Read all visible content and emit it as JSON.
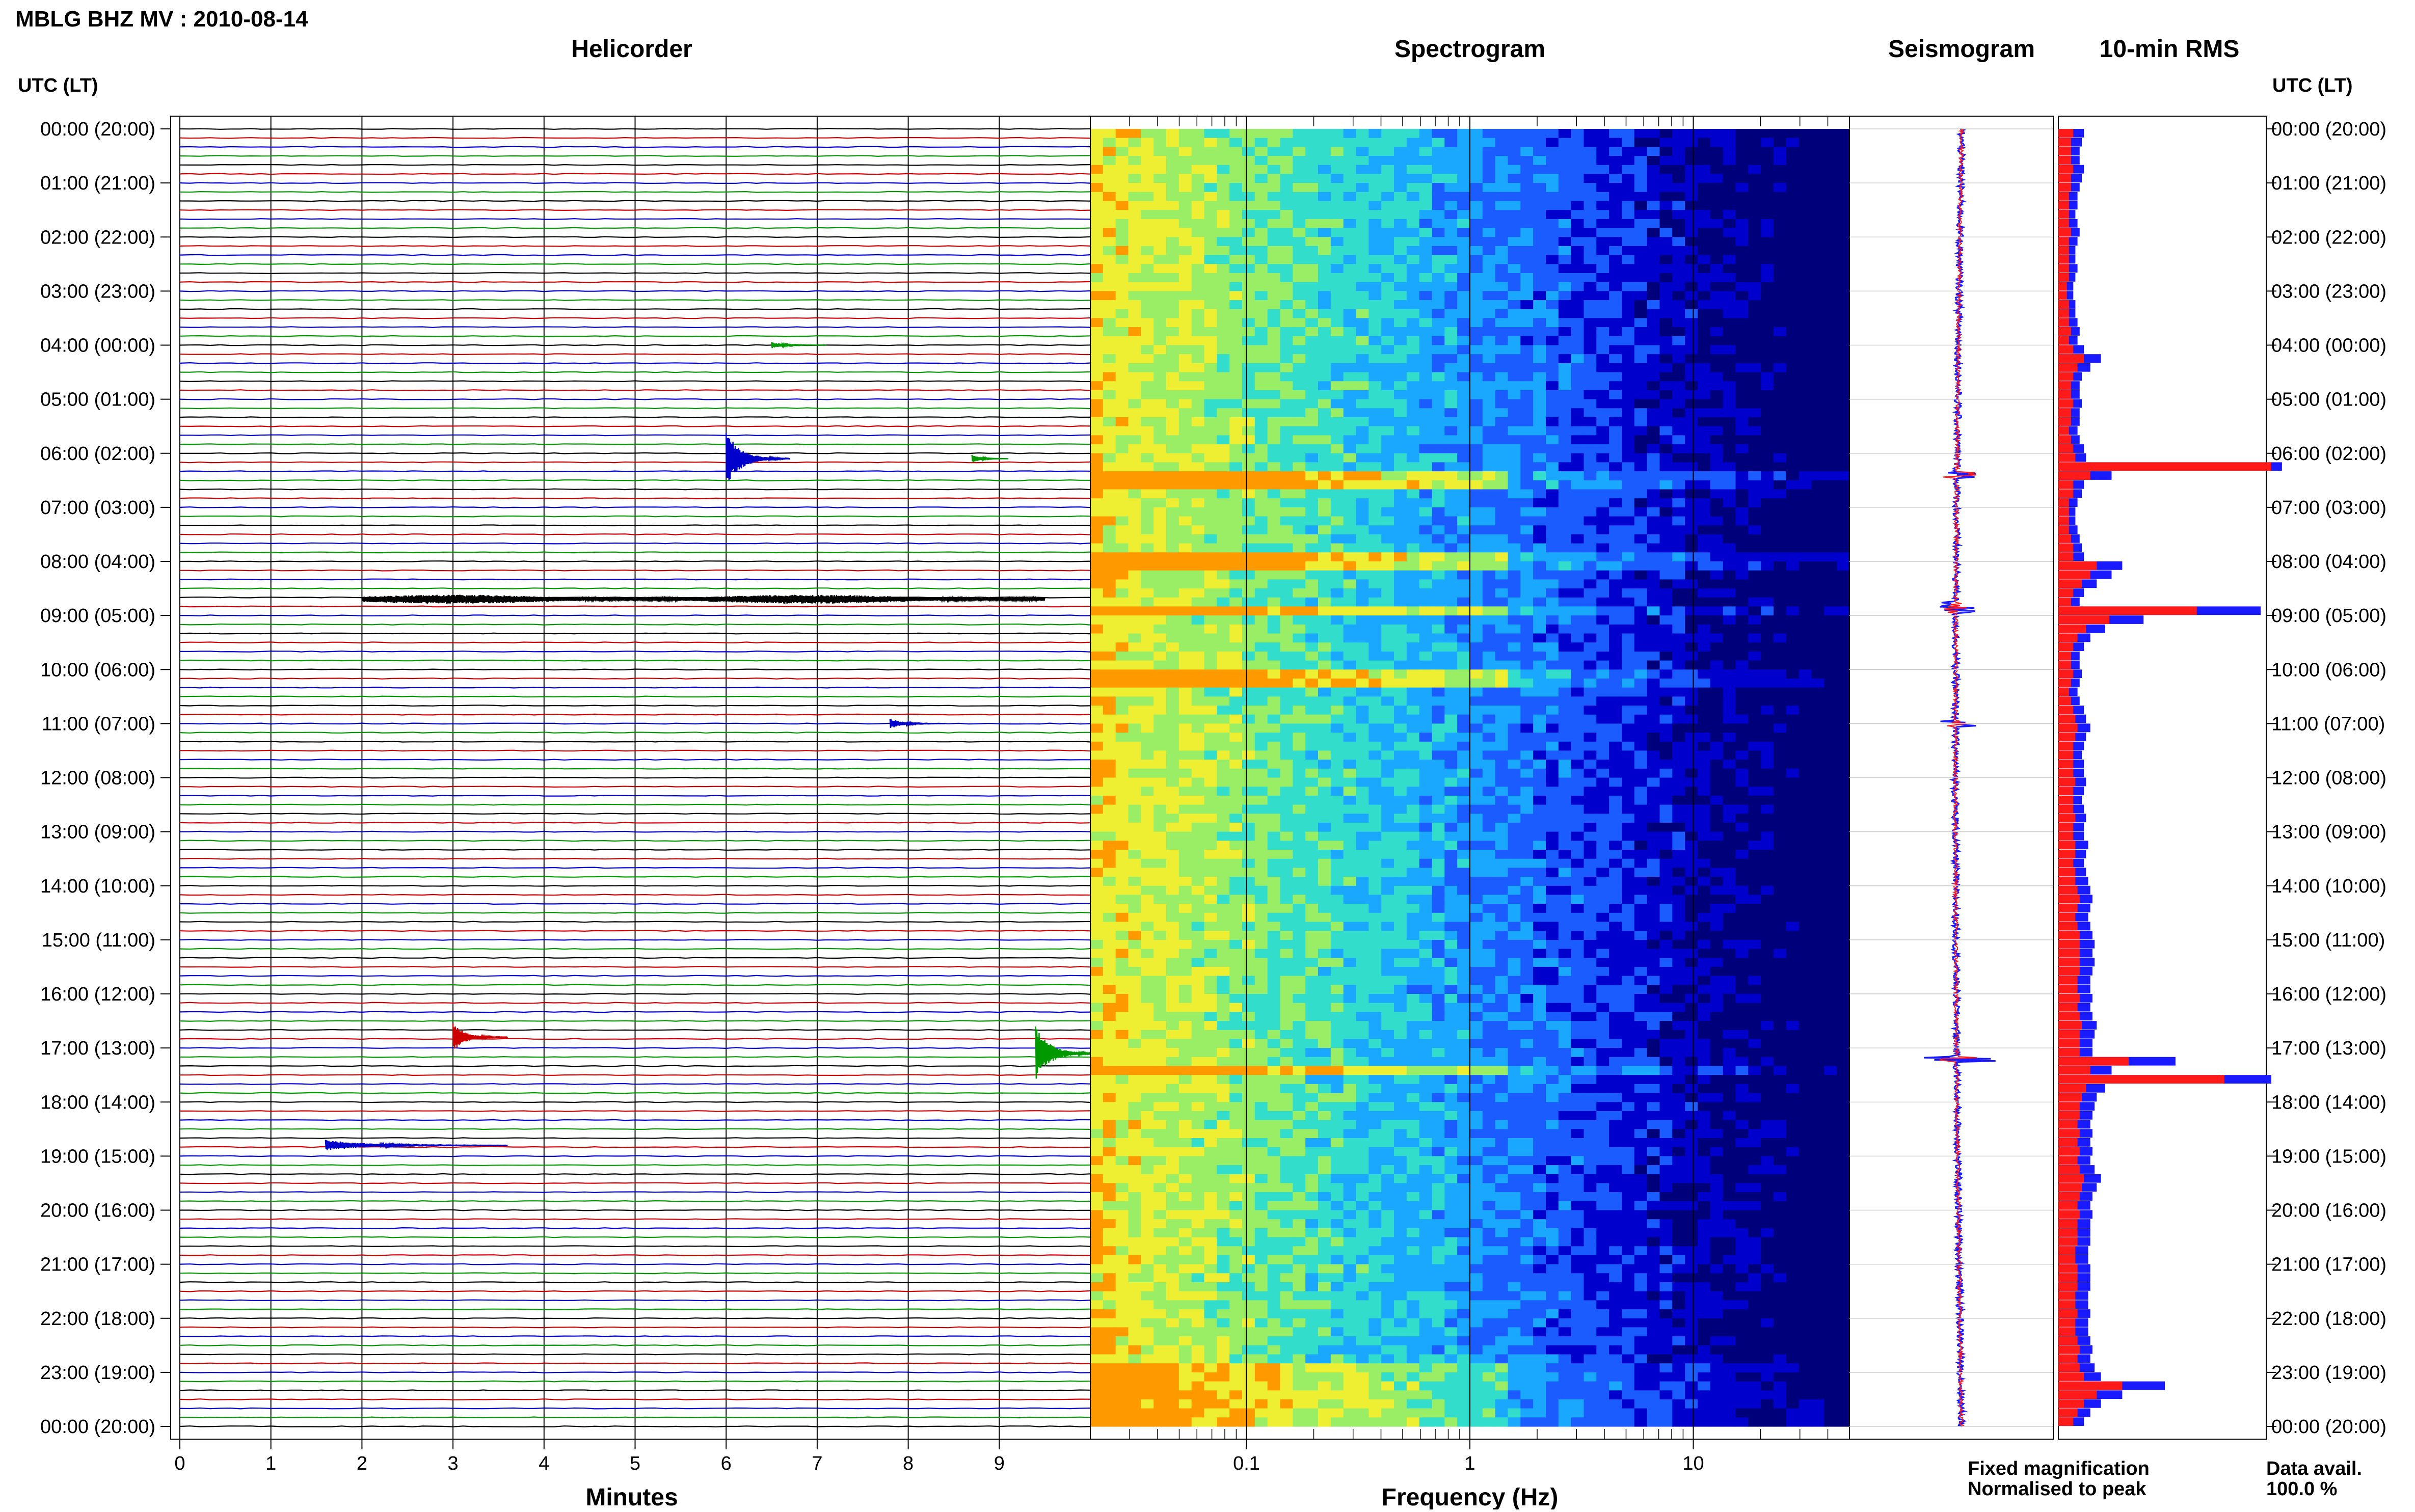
{
  "title": "MBLG BHZ MV : 2010-08-14",
  "axis_left_label": "UTC (LT)",
  "axis_right_label": "UTC (LT)",
  "panels": {
    "helicorder": "Helicorder",
    "spectrogram": "Spectrogram",
    "seismogram": "Seismogram",
    "rms": "10-min RMS"
  },
  "time_labels": [
    "00:00 (20:00)",
    "01:00 (21:00)",
    "02:00 (22:00)",
    "03:00 (23:00)",
    "04:00 (00:00)",
    "05:00 (01:00)",
    "06:00 (02:00)",
    "07:00 (03:00)",
    "08:00 (04:00)",
    "09:00 (05:00)",
    "10:00 (06:00)",
    "11:00 (07:00)",
    "12:00 (08:00)",
    "13:00 (09:00)",
    "14:00 (10:00)",
    "15:00 (11:00)",
    "16:00 (12:00)",
    "17:00 (13:00)",
    "18:00 (14:00)",
    "19:00 (15:00)",
    "20:00 (16:00)",
    "21:00 (17:00)",
    "22:00 (18:00)",
    "23:00 (19:00)",
    "00:00 (20:00)"
  ],
  "legend": {
    "fixed": "Fixed magnification",
    "normalised": "Normalised to peak",
    "fixed_color": "#1a1aff",
    "normalised_color": "#ff1a1a"
  },
  "data_avail": {
    "label": "Data avail.",
    "value": "100.0 %"
  },
  "chart_data": [
    {
      "type": "line",
      "name": "helicorder",
      "title": "Helicorder",
      "xlabel": "Minutes",
      "xlim": [
        0,
        10
      ],
      "xticks": [
        "0",
        "1",
        "2",
        "3",
        "4",
        "5",
        "6",
        "7",
        "8",
        "9"
      ],
      "line_minutes": 10,
      "line_count": 144,
      "trace_colors": [
        "#000000",
        "#cc0000",
        "#0000cc",
        "#009900"
      ],
      "events": [
        {
          "start_hour": 4.0,
          "minute": 6.5,
          "amp": 0.35,
          "dur": 0.6,
          "color": "#009900"
        },
        {
          "start_hour": 6.1,
          "minute": 6.0,
          "amp": 3.2,
          "dur": 0.7,
          "color": "#0000cc"
        },
        {
          "start_hour": 6.1,
          "minute": 8.7,
          "amp": 0.5,
          "dur": 0.4,
          "color": "#009900"
        },
        {
          "start_hour": 8.7,
          "minute": 2.0,
          "amp": 0.5,
          "dur": 7.5,
          "color": "#000000"
        },
        {
          "start_hour": 11.0,
          "minute": 7.8,
          "amp": 0.6,
          "dur": 0.6,
          "color": "#0000cc"
        },
        {
          "start_hour": 16.8,
          "minute": 3.0,
          "amp": 1.6,
          "dur": 0.6,
          "color": "#cc0000"
        },
        {
          "start_hour": 17.1,
          "minute": 9.4,
          "amp": 3.0,
          "dur": 0.7,
          "color": "#009900"
        },
        {
          "start_hour": 18.8,
          "minute": 1.6,
          "amp": 0.6,
          "dur": 2.0,
          "color": "#0000cc"
        }
      ]
    },
    {
      "type": "heatmap",
      "name": "spectrogram",
      "title": "Spectrogram",
      "xlabel": "Frequency (Hz)",
      "xscale": "log",
      "xlim": [
        0.02,
        50
      ],
      "xticks": [
        0.1,
        1,
        10
      ],
      "xtick_labels": [
        "0.1",
        "1",
        "10"
      ],
      "ylim_hours": [
        0,
        24
      ],
      "colormap": [
        "#00007a",
        "#0000cc",
        "#1a5cff",
        "#1aa8ff",
        "#33ddcc",
        "#99ee66",
        "#eeee33",
        "#ff9900"
      ],
      "bright_rows_hours": [
        6.4,
        7.9,
        8.85,
        10.1,
        17.3
      ]
    },
    {
      "type": "line",
      "name": "seismogram",
      "title": "Seismogram",
      "series": [
        {
          "name": "Fixed magnification",
          "color": "#1a1aff"
        },
        {
          "name": "Normalised to peak",
          "color": "#ff1a1a"
        }
      ]
    },
    {
      "type": "bar",
      "name": "rms",
      "title": "10-min RMS",
      "orientation": "horizontal",
      "bins": 144,
      "series": [
        {
          "name": "Fixed magnification",
          "color": "#1a1aff",
          "values": [
            0.12,
            0.11,
            0.1,
            0.1,
            0.12,
            0.11,
            0.1,
            0.09,
            0.09,
            0.08,
            0.09,
            0.1,
            0.09,
            0.08,
            0.08,
            0.09,
            0.08,
            0.07,
            0.07,
            0.08,
            0.08,
            0.09,
            0.1,
            0.09,
            0.12,
            0.2,
            0.15,
            0.11,
            0.1,
            0.1,
            0.11,
            0.1,
            0.1,
            0.09,
            0.1,
            0.12,
            0.13,
            1.05,
            0.25,
            0.12,
            0.11,
            0.09,
            0.08,
            0.08,
            0.09,
            0.1,
            0.11,
            0.12,
            0.3,
            0.25,
            0.18,
            0.12,
            0.1,
            0.95,
            0.4,
            0.22,
            0.15,
            0.12,
            0.1,
            0.1,
            0.11,
            0.1,
            0.09,
            0.1,
            0.12,
            0.13,
            0.15,
            0.13,
            0.12,
            0.11,
            0.12,
            0.12,
            0.13,
            0.12,
            0.11,
            0.12,
            0.13,
            0.12,
            0.12,
            0.14,
            0.13,
            0.12,
            0.13,
            0.14,
            0.15,
            0.16,
            0.15,
            0.14,
            0.15,
            0.16,
            0.17,
            0.16,
            0.17,
            0.16,
            0.15,
            0.15,
            0.16,
            0.15,
            0.16,
            0.18,
            0.17,
            0.16,
            0.16,
            0.55,
            0.25,
            1.0,
            0.22,
            0.18,
            0.17,
            0.16,
            0.15,
            0.16,
            0.15,
            0.16,
            0.15,
            0.17,
            0.2,
            0.18,
            0.16,
            0.15,
            0.16,
            0.15,
            0.15,
            0.15,
            0.14,
            0.14,
            0.15,
            0.15,
            0.15,
            0.14,
            0.14,
            0.15,
            0.14,
            0.14,
            0.15,
            0.16,
            0.15,
            0.17,
            0.2,
            0.5,
            0.3,
            0.2,
            0.15,
            0.12
          ]
        },
        {
          "name": "Normalised to peak",
          "color": "#ff1a1a",
          "values": [
            0.07,
            0.06,
            0.06,
            0.06,
            0.07,
            0.06,
            0.06,
            0.05,
            0.05,
            0.05,
            0.05,
            0.06,
            0.05,
            0.05,
            0.05,
            0.05,
            0.05,
            0.04,
            0.04,
            0.05,
            0.05,
            0.05,
            0.06,
            0.05,
            0.07,
            0.12,
            0.09,
            0.07,
            0.06,
            0.06,
            0.07,
            0.06,
            0.06,
            0.05,
            0.06,
            0.07,
            0.08,
            1.0,
            0.15,
            0.07,
            0.07,
            0.05,
            0.05,
            0.05,
            0.05,
            0.06,
            0.07,
            0.07,
            0.18,
            0.15,
            0.11,
            0.07,
            0.06,
            0.65,
            0.24,
            0.13,
            0.09,
            0.07,
            0.06,
            0.06,
            0.07,
            0.06,
            0.05,
            0.06,
            0.07,
            0.08,
            0.09,
            0.08,
            0.07,
            0.07,
            0.07,
            0.07,
            0.08,
            0.07,
            0.07,
            0.07,
            0.08,
            0.07,
            0.07,
            0.08,
            0.08,
            0.07,
            0.08,
            0.08,
            0.09,
            0.1,
            0.09,
            0.08,
            0.09,
            0.1,
            0.1,
            0.1,
            0.1,
            0.1,
            0.09,
            0.09,
            0.1,
            0.09,
            0.1,
            0.11,
            0.1,
            0.1,
            0.1,
            0.33,
            0.15,
            0.78,
            0.13,
            0.11,
            0.1,
            0.1,
            0.09,
            0.1,
            0.09,
            0.1,
            0.09,
            0.1,
            0.12,
            0.11,
            0.1,
            0.09,
            0.1,
            0.09,
            0.09,
            0.09,
            0.08,
            0.08,
            0.09,
            0.09,
            0.09,
            0.08,
            0.08,
            0.09,
            0.08,
            0.08,
            0.09,
            0.1,
            0.09,
            0.1,
            0.12,
            0.3,
            0.18,
            0.12,
            0.09,
            0.07
          ]
        }
      ]
    }
  ]
}
